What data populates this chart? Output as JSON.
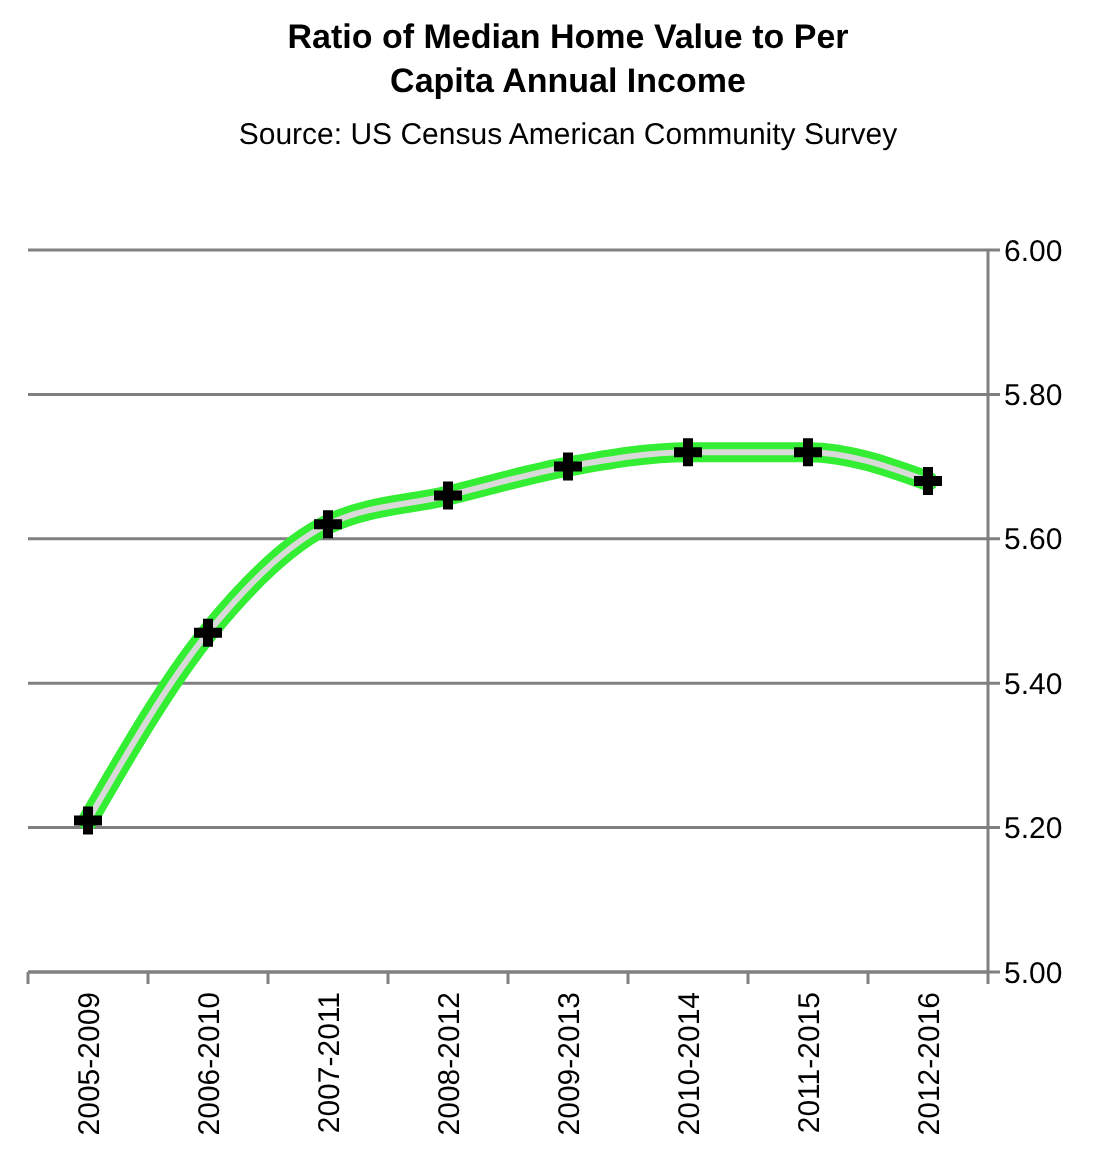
{
  "chart_data": {
    "type": "line",
    "title": "Ratio of Median Home Value to Per Capita Annual Income",
    "subtitle": "Source: US Census American Community Survey",
    "categories": [
      "2005-2009",
      "2006-2010",
      "2007-2011",
      "2008-2012",
      "2009-2013",
      "2010-2014",
      "2011-2015",
      "2012-2016"
    ],
    "series": [
      {
        "color": "#33ee33",
        "values": [
          5.21,
          5.47,
          5.62,
          5.66,
          5.7,
          5.72,
          5.72,
          5.68
        ]
      }
    ],
    "ylim": [
      5.0,
      6.0
    ],
    "yticks": [
      {
        "value": 5.0,
        "label": "5.00"
      },
      {
        "value": 5.2,
        "label": "5.20"
      },
      {
        "value": 5.4,
        "label": "5.40"
      },
      {
        "value": 5.6,
        "label": "5.60"
      },
      {
        "value": 5.8,
        "label": "5.80"
      },
      {
        "value": 6.0,
        "label": "6.00"
      }
    ],
    "grid": "y",
    "marker": "cross",
    "line_style": "solid"
  }
}
